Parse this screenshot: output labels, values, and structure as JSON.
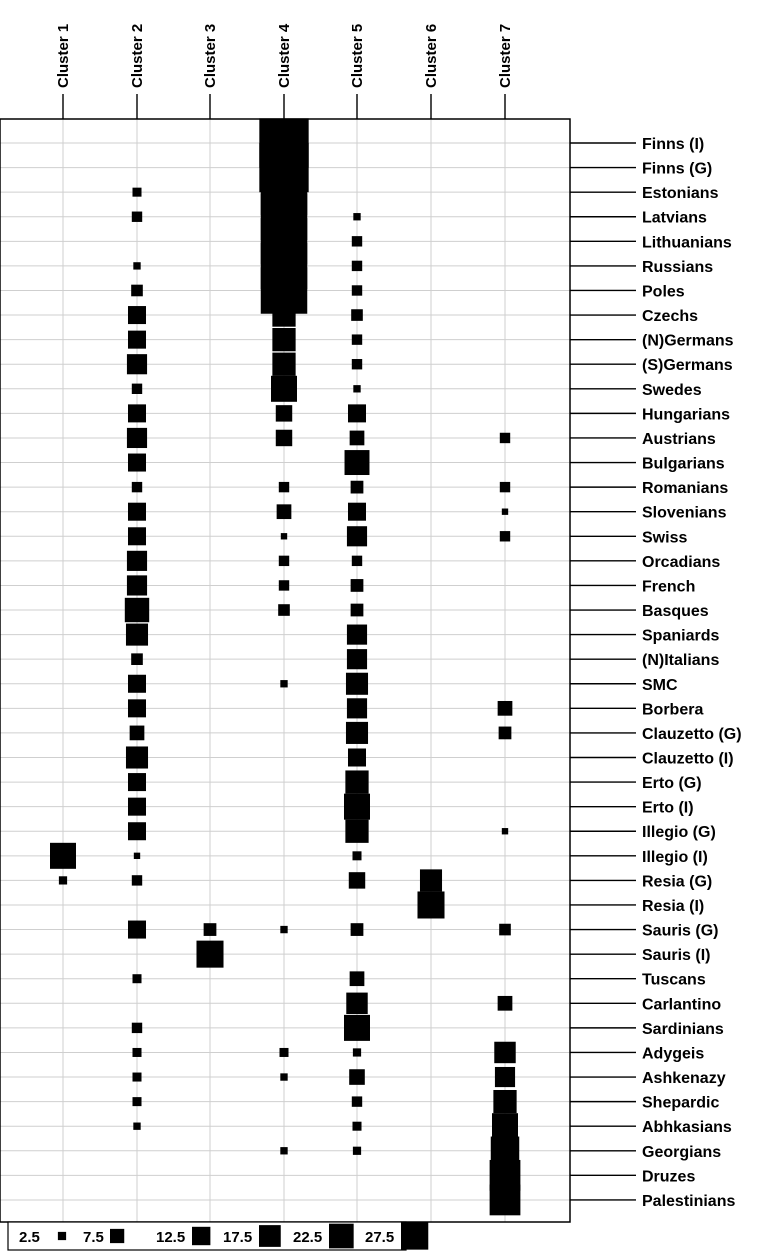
{
  "chart_data": {
    "type": "balloon",
    "x_categories": [
      "Cluster 1",
      "Cluster 2",
      "Cluster 3",
      "Cluster 4",
      "Cluster 5",
      "Cluster 6",
      "Cluster 7"
    ],
    "y_categories": [
      "Finns (I)",
      "Finns (G)",
      "Estonians",
      "Latvians",
      "Lithuanians",
      "Russians",
      "Poles",
      "Czechs",
      "(N)Germans",
      "(S)Germans",
      "Swedes",
      "Hungarians",
      "Austrians",
      "Bulgarians",
      "Romanians",
      "Slovenians",
      "Swiss",
      "Orcadians",
      "French",
      "Basques",
      "Spaniards",
      "(N)Italians",
      "SMC",
      "Borbera",
      "Clauzetto (G)",
      "Clauzetto (I)",
      "Erto (G)",
      "Erto (I)",
      "Illegio (G)",
      "Illegio (I)",
      "Resia (G)",
      "Resia (I)",
      "Sauris (G)",
      "Sauris (I)",
      "Tuscans",
      "Carlantino",
      "Sardinians",
      "Adygeis",
      "Ashkenazy",
      "Shepardic",
      "Abhkasians",
      "Georgians",
      "Druzes",
      "Palestinians"
    ],
    "values": [
      [
        0,
        0,
        0,
        90,
        0,
        0,
        0
      ],
      [
        0,
        0,
        0,
        90,
        0,
        0,
        0
      ],
      [
        0,
        3,
        0,
        80,
        0,
        0,
        0
      ],
      [
        0,
        4,
        0,
        80,
        2,
        0,
        0
      ],
      [
        0,
        0,
        0,
        80,
        4,
        0,
        0
      ],
      [
        0,
        2,
        0,
        80,
        4,
        0,
        0
      ],
      [
        0,
        5,
        0,
        80,
        4,
        0,
        0
      ],
      [
        0,
        12,
        0,
        20,
        5,
        0,
        0
      ],
      [
        0,
        12,
        0,
        20,
        4,
        0,
        0
      ],
      [
        0,
        15,
        0,
        20,
        4,
        0,
        0
      ],
      [
        0,
        4,
        0,
        25,
        2,
        0,
        0
      ],
      [
        0,
        12,
        0,
        10,
        12,
        0,
        0
      ],
      [
        0,
        15,
        0,
        10,
        8,
        0,
        4
      ],
      [
        0,
        12,
        0,
        0,
        23,
        0,
        0
      ],
      [
        0,
        4,
        0,
        4,
        6,
        0,
        4
      ],
      [
        0,
        12,
        0,
        8,
        12,
        0,
        1.5
      ],
      [
        0,
        12,
        0,
        1.5,
        15,
        0,
        4
      ],
      [
        0,
        15,
        0,
        4,
        4,
        0,
        0
      ],
      [
        0,
        15,
        0,
        4,
        6,
        0,
        0
      ],
      [
        0,
        22,
        0,
        5,
        6,
        0,
        0
      ],
      [
        0,
        18,
        0,
        0,
        15,
        0,
        0
      ],
      [
        0,
        5,
        0,
        0,
        15,
        0,
        0
      ],
      [
        0,
        12,
        0,
        2,
        18,
        0,
        0
      ],
      [
        0,
        12,
        0,
        0,
        15,
        0,
        8
      ],
      [
        0,
        8,
        0,
        0,
        18,
        0,
        6
      ],
      [
        0,
        18,
        0,
        0,
        12,
        0,
        0
      ],
      [
        0,
        12,
        0,
        0,
        20,
        0,
        0
      ],
      [
        0,
        12,
        0,
        0,
        25,
        0,
        0
      ],
      [
        0,
        12,
        0,
        0,
        20,
        0,
        1.5
      ],
      [
        25,
        1.5,
        0,
        0,
        3,
        0,
        0
      ],
      [
        2.5,
        4,
        0,
        0,
        10,
        18,
        0
      ],
      [
        0,
        0,
        0,
        0,
        0,
        27,
        0
      ],
      [
        0,
        12,
        6,
        2,
        6,
        0,
        5
      ],
      [
        0,
        0,
        27,
        0,
        0,
        0,
        0
      ],
      [
        0,
        3,
        0,
        0,
        8,
        0,
        0
      ],
      [
        0,
        0,
        0,
        0,
        17,
        0,
        8
      ],
      [
        0,
        4,
        0,
        0,
        25,
        0,
        0
      ],
      [
        0,
        3,
        0,
        3,
        2.5,
        0,
        17
      ],
      [
        0,
        3,
        0,
        2,
        9,
        0,
        15
      ],
      [
        0,
        3,
        0,
        0,
        4,
        0,
        20
      ],
      [
        0,
        2,
        0,
        0,
        3,
        0,
        25
      ],
      [
        0,
        0,
        0,
        2,
        2.5,
        0,
        30
      ],
      [
        0,
        0,
        0,
        0,
        0,
        0,
        35
      ],
      [
        0,
        0,
        0,
        0,
        0,
        0,
        35
      ]
    ],
    "legend": {
      "labels": [
        "2.5",
        "7.5",
        "12.5",
        "17.5",
        "22.5",
        "27.5"
      ],
      "values": [
        2.5,
        7.5,
        12.5,
        17.5,
        22.5,
        27.5
      ],
      "placement": "bottom-left"
    },
    "grid": true,
    "marker_color": "#000000"
  }
}
